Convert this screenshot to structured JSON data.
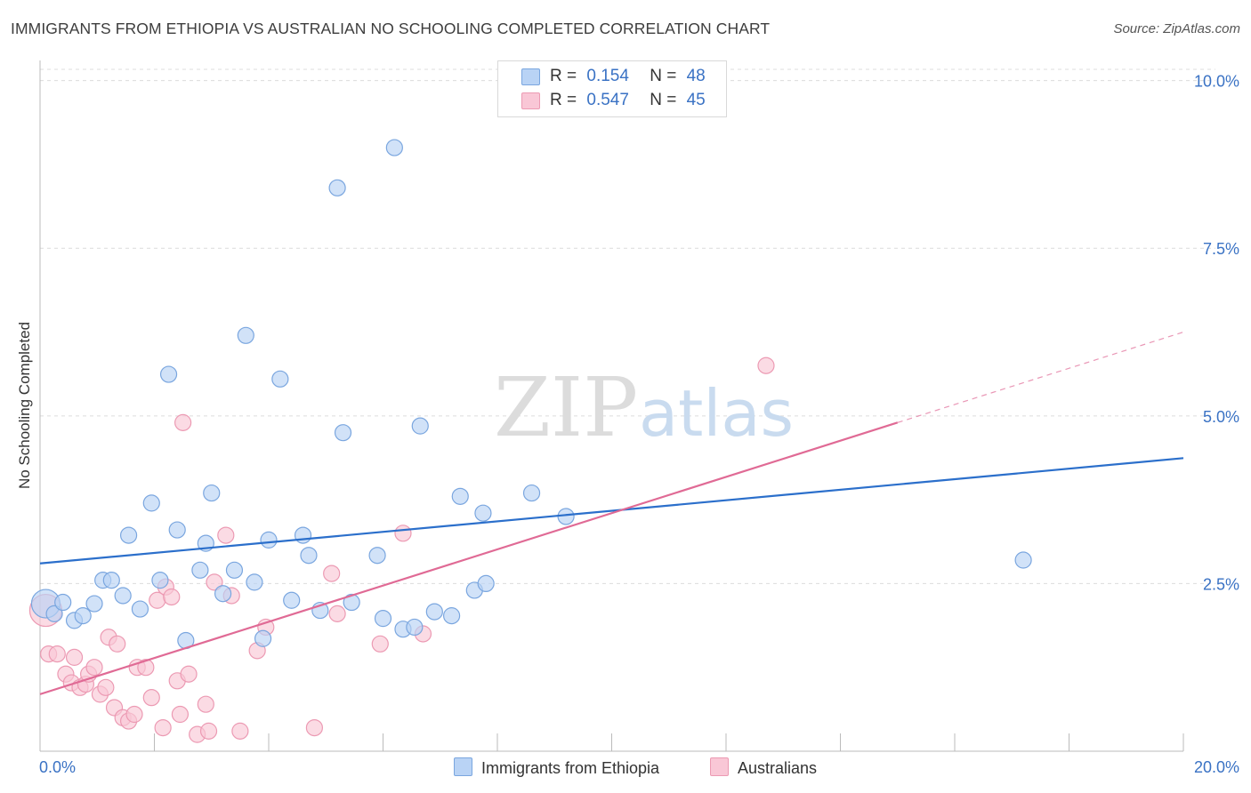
{
  "header": {
    "title": "IMMIGRANTS FROM ETHIOPIA VS AUSTRALIAN NO SCHOOLING COMPLETED CORRELATION CHART",
    "source": "Source: ZipAtlas.com"
  },
  "watermark": {
    "zip": "ZIP",
    "atlas": "atlas"
  },
  "legend": {
    "r_label": "R =",
    "n_label": "N =",
    "series1": {
      "r": "0.154",
      "n": "48"
    },
    "series2": {
      "r": "0.547",
      "n": "45"
    }
  },
  "bottom_legend": {
    "series1": "Immigrants from Ethiopia",
    "series2": "Australians"
  },
  "colors": {
    "blue_fill": "#b9d3f5",
    "blue_stroke": "#7aa6df",
    "blue_line": "#2b6fcb",
    "pink_fill": "#f9c7d6",
    "pink_stroke": "#ec9ab3",
    "pink_line": "#e06a95",
    "tick_text": "#3a72c4",
    "grid": "#dcdcdc"
  },
  "chart_data": {
    "type": "scatter",
    "title": "IMMIGRANTS FROM ETHIOPIA VS AUSTRALIAN NO SCHOOLING COMPLETED CORRELATION CHART",
    "xlabel": "",
    "ylabel": "No Schooling Completed",
    "xlim": [
      0,
      20
    ],
    "ylim": [
      0,
      10.3
    ],
    "x_tick_labels": [
      "0.0%",
      "20.0%"
    ],
    "y_ticks": [
      2.5,
      5.0,
      7.5,
      10.0
    ],
    "y_tick_labels": [
      "2.5%",
      "5.0%",
      "7.5%",
      "10.0%"
    ],
    "grid": "horizontal dashed",
    "legend_position": "top-center",
    "series": [
      {
        "name": "Immigrants from Ethiopia",
        "r": 0.154,
        "n": 48,
        "trend": {
          "x": [
            0,
            20
          ],
          "y": [
            2.8,
            4.37
          ]
        },
        "points": [
          [
            0.1,
            2.2,
            16
          ],
          [
            0.25,
            2.05,
            9
          ],
          [
            0.4,
            2.22,
            9
          ],
          [
            0.6,
            1.95,
            9
          ],
          [
            0.75,
            2.02,
            9
          ],
          [
            0.95,
            2.2,
            9
          ],
          [
            1.1,
            2.55,
            9
          ],
          [
            1.25,
            2.55,
            9
          ],
          [
            1.45,
            2.32,
            9
          ],
          [
            1.55,
            3.22,
            9
          ],
          [
            1.75,
            2.12,
            9
          ],
          [
            1.95,
            3.7,
            9
          ],
          [
            2.1,
            2.55,
            9
          ],
          [
            2.25,
            5.62,
            9
          ],
          [
            2.4,
            3.3,
            9
          ],
          [
            2.55,
            1.65,
            9
          ],
          [
            2.8,
            2.7,
            9
          ],
          [
            2.9,
            3.1,
            9
          ],
          [
            3.0,
            3.85,
            9
          ],
          [
            3.2,
            2.35,
            9
          ],
          [
            3.4,
            2.7,
            9
          ],
          [
            3.6,
            6.2,
            9
          ],
          [
            3.75,
            2.52,
            9
          ],
          [
            3.9,
            1.68,
            9
          ],
          [
            4.0,
            3.15,
            9
          ],
          [
            4.2,
            5.55,
            9
          ],
          [
            4.4,
            2.25,
            9
          ],
          [
            4.6,
            3.22,
            9
          ],
          [
            4.7,
            2.92,
            9
          ],
          [
            4.9,
            2.1,
            9
          ],
          [
            5.2,
            8.4,
            9
          ],
          [
            5.3,
            4.75,
            9
          ],
          [
            5.45,
            2.22,
            9
          ],
          [
            5.9,
            2.92,
            9
          ],
          [
            6.0,
            1.98,
            9
          ],
          [
            6.2,
            9.0,
            9
          ],
          [
            6.35,
            1.82,
            9
          ],
          [
            6.55,
            1.85,
            9
          ],
          [
            6.65,
            4.85,
            9
          ],
          [
            6.9,
            2.08,
            9
          ],
          [
            7.2,
            2.02,
            9
          ],
          [
            7.35,
            3.8,
            9
          ],
          [
            7.6,
            2.4,
            9
          ],
          [
            7.75,
            3.55,
            9
          ],
          [
            7.8,
            2.5,
            9
          ],
          [
            8.6,
            3.85,
            9
          ],
          [
            9.2,
            3.5,
            9
          ],
          [
            17.2,
            2.85,
            9
          ]
        ]
      },
      {
        "name": "Australians",
        "r": 0.547,
        "n": 45,
        "trend": {
          "x": [
            0,
            15
          ],
          "y": [
            0.85,
            4.9
          ]
        },
        "trend_dashed": {
          "x": [
            15,
            20
          ],
          "y": [
            4.9,
            6.25
          ]
        },
        "points": [
          [
            0.1,
            2.1,
            18
          ],
          [
            0.15,
            1.45,
            9
          ],
          [
            0.3,
            1.45,
            9
          ],
          [
            0.45,
            1.15,
            9
          ],
          [
            0.55,
            1.02,
            9
          ],
          [
            0.6,
            1.4,
            9
          ],
          [
            0.7,
            0.95,
            9
          ],
          [
            0.8,
            1.0,
            9
          ],
          [
            0.85,
            1.15,
            9
          ],
          [
            0.95,
            1.25,
            9
          ],
          [
            1.05,
            0.85,
            9
          ],
          [
            1.15,
            0.95,
            9
          ],
          [
            1.2,
            1.7,
            9
          ],
          [
            1.3,
            0.65,
            9
          ],
          [
            1.35,
            1.6,
            9
          ],
          [
            1.45,
            0.5,
            9
          ],
          [
            1.55,
            0.45,
            9
          ],
          [
            1.65,
            0.55,
            9
          ],
          [
            1.7,
            1.25,
            9
          ],
          [
            1.85,
            1.25,
            9
          ],
          [
            1.95,
            0.8,
            9
          ],
          [
            2.05,
            2.25,
            9
          ],
          [
            2.15,
            0.35,
            9
          ],
          [
            2.2,
            2.45,
            9
          ],
          [
            2.3,
            2.3,
            9
          ],
          [
            2.4,
            1.05,
            9
          ],
          [
            2.45,
            0.55,
            9
          ],
          [
            2.5,
            4.9,
            9
          ],
          [
            2.6,
            1.15,
            9
          ],
          [
            2.75,
            0.25,
            9
          ],
          [
            2.9,
            0.7,
            9
          ],
          [
            2.95,
            0.3,
            9
          ],
          [
            3.05,
            2.52,
            9
          ],
          [
            3.25,
            3.22,
            9
          ],
          [
            3.35,
            2.32,
            9
          ],
          [
            3.5,
            0.3,
            9
          ],
          [
            3.8,
            1.5,
            9
          ],
          [
            3.95,
            1.85,
            9
          ],
          [
            4.8,
            0.35,
            9
          ],
          [
            5.1,
            2.65,
            9
          ],
          [
            5.2,
            2.05,
            9
          ],
          [
            5.95,
            1.6,
            9
          ],
          [
            6.35,
            3.25,
            9
          ],
          [
            6.7,
            1.75,
            9
          ],
          [
            12.7,
            5.75,
            9
          ]
        ]
      }
    ]
  }
}
